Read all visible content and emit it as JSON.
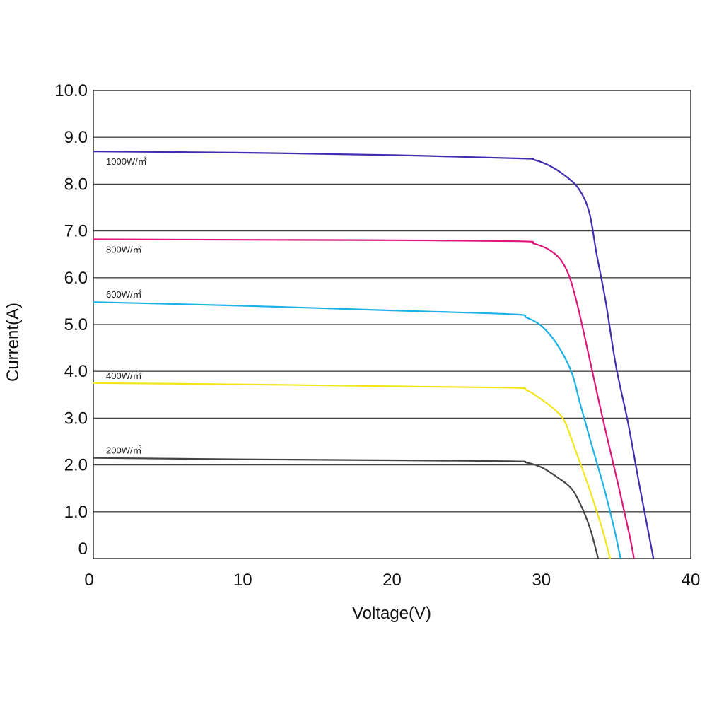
{
  "chart_data": {
    "type": "line",
    "xlabel": "Voltage(V)",
    "ylabel": "Current(A)",
    "xlim": [
      0,
      40
    ],
    "ylim": [
      0,
      10
    ],
    "xticks": [
      "0",
      "10",
      "20",
      "30",
      "40"
    ],
    "yticks": [
      "0",
      "1.0",
      "2.0",
      "3.0",
      "4.0",
      "5.0",
      "6.0",
      "7.0",
      "8.0",
      "9.0",
      "10.0"
    ],
    "grid": "horizontal",
    "series": [
      {
        "name": "1000W/㎡",
        "color": "#3f2fb0",
        "points": [
          [
            0,
            8.7
          ],
          [
            10,
            8.67
          ],
          [
            20,
            8.62
          ],
          [
            28.5,
            8.55
          ],
          [
            29.5,
            8.52
          ],
          [
            30.5,
            8.4
          ],
          [
            31.5,
            8.2
          ],
          [
            32.5,
            7.9
          ],
          [
            33.2,
            7.4
          ],
          [
            33.7,
            6.5
          ],
          [
            34.3,
            5.5
          ],
          [
            35,
            4.1
          ],
          [
            35.8,
            2.9
          ],
          [
            36.6,
            1.5
          ],
          [
            37.2,
            0.5
          ],
          [
            37.5,
            0
          ]
        ]
      },
      {
        "name": "800W/㎡",
        "color": "#e0157b",
        "points": [
          [
            0,
            6.82
          ],
          [
            10,
            6.81
          ],
          [
            20,
            6.8
          ],
          [
            28.5,
            6.78
          ],
          [
            29.5,
            6.73
          ],
          [
            30.5,
            6.6
          ],
          [
            31.3,
            6.38
          ],
          [
            31.9,
            6.0
          ],
          [
            32.5,
            5.3
          ],
          [
            33.2,
            4.3
          ],
          [
            34.1,
            3.0
          ],
          [
            35.2,
            1.5
          ],
          [
            35.9,
            0.5
          ],
          [
            36.2,
            0
          ]
        ]
      },
      {
        "name": "600W/㎡",
        "color": "#1cb2e6",
        "points": [
          [
            0,
            5.48
          ],
          [
            10,
            5.4
          ],
          [
            20,
            5.3
          ],
          [
            28,
            5.22
          ],
          [
            29,
            5.15
          ],
          [
            30,
            4.97
          ],
          [
            31,
            4.6
          ],
          [
            32,
            4.0
          ],
          [
            32.6,
            3.3
          ],
          [
            33.3,
            2.5
          ],
          [
            34.2,
            1.5
          ],
          [
            34.9,
            0.6
          ],
          [
            35.3,
            0
          ]
        ]
      },
      {
        "name": "400W/㎡",
        "color": "#f2e61a",
        "points": [
          [
            0,
            3.75
          ],
          [
            10,
            3.72
          ],
          [
            20,
            3.68
          ],
          [
            28,
            3.65
          ],
          [
            29,
            3.6
          ],
          [
            30,
            3.4
          ],
          [
            31,
            3.15
          ],
          [
            31.6,
            2.9
          ],
          [
            32.3,
            2.3
          ],
          [
            33.2,
            1.5
          ],
          [
            34.1,
            0.6
          ],
          [
            34.6,
            0
          ]
        ]
      },
      {
        "name": "200W/㎡",
        "color": "#444444",
        "points": [
          [
            0,
            2.15
          ],
          [
            10,
            2.12
          ],
          [
            20,
            2.1
          ],
          [
            28,
            2.08
          ],
          [
            29,
            2.05
          ],
          [
            30,
            1.95
          ],
          [
            31,
            1.75
          ],
          [
            32,
            1.5
          ],
          [
            32.7,
            1.1
          ],
          [
            33.3,
            0.6
          ],
          [
            33.8,
            0
          ]
        ]
      }
    ]
  }
}
